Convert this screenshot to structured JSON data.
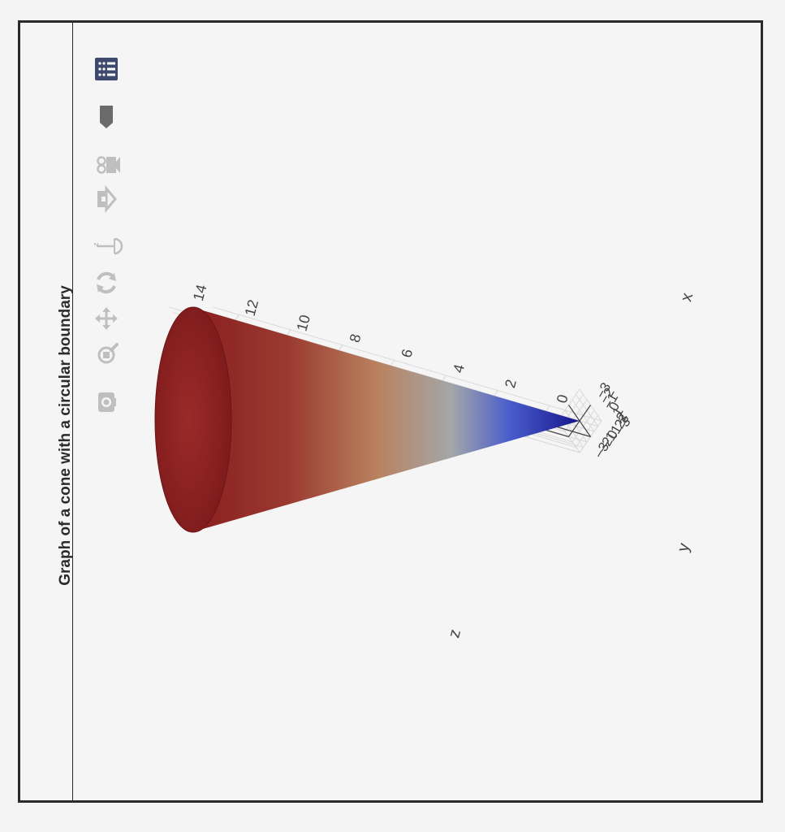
{
  "title": "Graph of a cone with a circular boundary",
  "modebar": [
    {
      "id": "download",
      "icon": "camera-icon",
      "label": "Download plot as a png"
    },
    {
      "id": "zoom",
      "icon": "zoom-icon",
      "label": "Zoom"
    },
    {
      "id": "pan",
      "icon": "pan-icon",
      "label": "Pan"
    },
    {
      "id": "orbit",
      "icon": "orbit-rotation-icon",
      "label": "Orbital rotation"
    },
    {
      "id": "turntable",
      "icon": "turntable-icon",
      "label": "Turntable rotation"
    },
    {
      "id": "reset",
      "icon": "home-icon",
      "label": "Reset camera to default"
    },
    {
      "id": "save_camera",
      "icon": "camera-save-icon",
      "label": "Save camera"
    },
    {
      "id": "hover",
      "icon": "hover-icon",
      "label": "Toggle hover"
    },
    {
      "id": "logo",
      "icon": "plotly-logo-icon",
      "label": "Produced with Plotly"
    }
  ],
  "chart_data": {
    "type": "surface",
    "surface": "cone",
    "equation": "z = 5 * sqrt(x^2 + y^2)",
    "radius": 3,
    "z_range": [
      0,
      15
    ],
    "colorscale": [
      "#1a1a8c",
      "#4a5fd0",
      "#9aa1a8",
      "#c8956a",
      "#a85a3a",
      "#8b1e1e"
    ],
    "xaxis": {
      "title": "x",
      "ticks": [
        "−3",
        "−2",
        "−1",
        "0",
        "1",
        "2",
        "3"
      ],
      "range": [
        -3,
        3
      ]
    },
    "yaxis": {
      "title": "y",
      "ticks": [
        "−3",
        "−2",
        "−1",
        "0",
        "1",
        "2",
        "3"
      ],
      "range": [
        -3,
        3
      ]
    },
    "zaxis": {
      "title": "z",
      "ticks": [
        "0",
        "2",
        "4",
        "6",
        "8",
        "10",
        "12",
        "14"
      ],
      "range": [
        0,
        15
      ]
    },
    "grid": true
  }
}
